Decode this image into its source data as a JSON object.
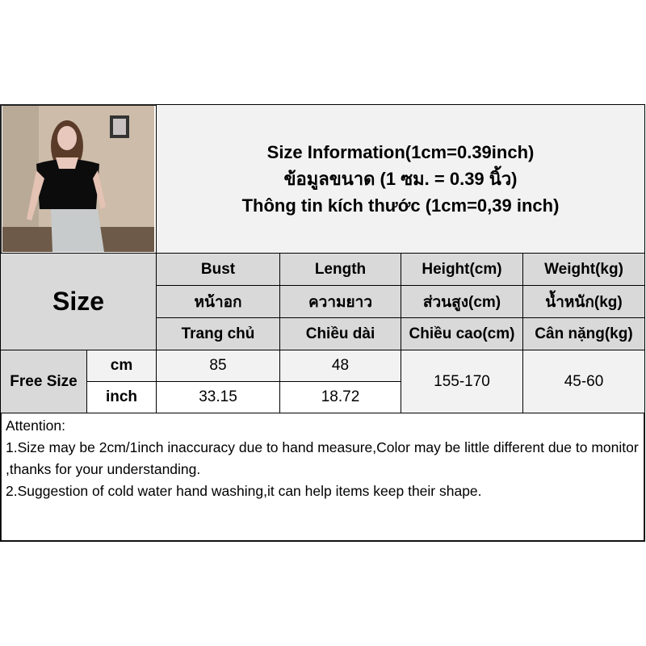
{
  "title": {
    "line1": "Size Information(1cm=0.39inch)",
    "line2": "ข้อมูลขนาด (1 ซม. = 0.39 นิ้ว)",
    "line3": "Thông tin kích thước (1cm=0,39 inch)"
  },
  "table": {
    "size_label": "Size",
    "columns": [
      {
        "en": "Bust",
        "th": "หน้าอก",
        "vi": "Trang chủ"
      },
      {
        "en": "Length",
        "th": "ความยาว",
        "vi": "Chiều dài"
      },
      {
        "en": "Height(cm)",
        "th": "ส่วนสูง(cm)",
        "vi": "Chiều cao(cm)"
      },
      {
        "en": "Weight(kg)",
        "th": "น้ำหนัก(kg)",
        "vi": "Cân nặng(kg)"
      }
    ],
    "row": {
      "size": "Free Size",
      "unit_cm": "cm",
      "unit_inch": "inch",
      "bust_cm": "85",
      "length_cm": "48",
      "bust_inch": "33.15",
      "length_inch": "18.72",
      "height": "155-170",
      "weight": "45-60"
    }
  },
  "attention": {
    "heading": "Attention:",
    "note1": "1.Size may be 2cm/1inch inaccuracy due to hand measure,Color may be little different due to monitor ,thanks for your understanding.",
    "note2": "2.Suggestion of cold water hand washing,it can help items keep their shape."
  },
  "colors": {
    "header_gray": "#d9d9d9",
    "light_gray": "#f2f2f2"
  }
}
